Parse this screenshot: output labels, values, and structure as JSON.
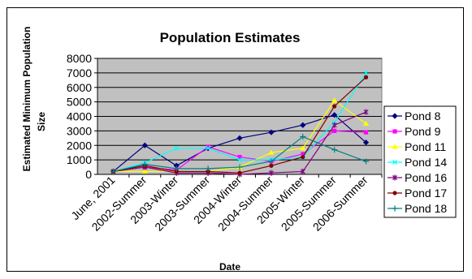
{
  "chart_data": {
    "type": "line",
    "title": "Population Estimates",
    "xlabel": "Date",
    "ylabel": [
      "Estimated Minimum Population",
      "Size"
    ],
    "ylim": [
      0,
      8000
    ],
    "yticks": [
      "0",
      "1000",
      "2000",
      "3000",
      "4000",
      "5000",
      "6000",
      "7000",
      "8000"
    ],
    "x_tick_labels": [
      "June, 2001",
      "2002-Summer",
      "2003-Winter",
      "2003-Summer",
      "2004-Winter",
      "2004-Summer",
      "2005-Winter",
      "2005-Summer",
      "2006-Summer"
    ],
    "grid": true,
    "legend_position": "right",
    "plot_background": "#c0c0c0",
    "series": [
      {
        "name": "Pond 8",
        "color": "#000080",
        "marker": "diamond",
        "values": [
          200,
          2000,
          600,
          1800,
          2500,
          2900,
          3400,
          4100,
          2200
        ]
      },
      {
        "name": "Pond 9",
        "color": "#ff00ff",
        "marker": "square",
        "values": [
          200,
          500,
          300,
          1900,
          1200,
          900,
          1400,
          3000,
          2900
        ]
      },
      {
        "name": "Pond 11",
        "color": "#ffff00",
        "marker": "triangle",
        "values": [
          200,
          200,
          200,
          200,
          500,
          1500,
          1800,
          5100,
          3500
        ]
      },
      {
        "name": "Pond 14",
        "color": "#00ffff",
        "marker": "x",
        "values": [
          200,
          800,
          1800,
          1800,
          1000,
          1000,
          1200,
          3600,
          7000
        ]
      },
      {
        "name": "Pond 16",
        "color": "#800080",
        "marker": "star",
        "values": [
          200,
          500,
          100,
          100,
          0,
          100,
          200,
          3400,
          4300
        ]
      },
      {
        "name": "Pond 17",
        "color": "#800000",
        "marker": "circle",
        "values": [
          200,
          600,
          200,
          200,
          100,
          600,
          1200,
          4700,
          6700
        ]
      },
      {
        "name": "Pond 18",
        "color": "#008080",
        "marker": "plus",
        "values": [
          200,
          700,
          400,
          400,
          500,
          900,
          2600,
          1700,
          900
        ]
      }
    ]
  }
}
